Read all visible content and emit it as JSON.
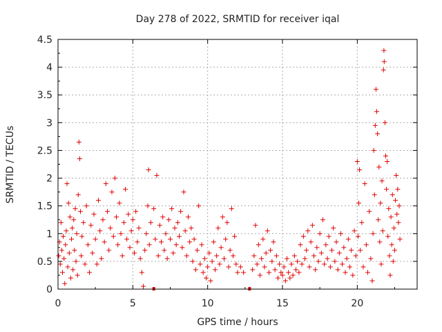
{
  "chart_data": {
    "type": "scatter",
    "title": "Day 278 of 2022, SRMTID for receiver iqal",
    "xlabel": "GPS time / hours",
    "ylabel": "SRMTID / TECUs",
    "xlim": [
      0,
      24
    ],
    "ylim": [
      0,
      4.5
    ],
    "xticks": [
      "0",
      "5",
      "10",
      "15",
      "20"
    ],
    "yticks": [
      "0",
      "0.5",
      "1",
      "1.5",
      "2",
      "2.5",
      "3",
      "3.5",
      "4",
      "4.5"
    ],
    "grid": true,
    "marker": "+",
    "color": "#e00000",
    "series": [
      {
        "name": "SRMTID",
        "points": [
          [
            0.05,
            0.6
          ],
          [
            0.1,
            0.85
          ],
          [
            0.15,
            0.45
          ],
          [
            0.2,
            1.2
          ],
          [
            0.25,
            0.7
          ],
          [
            0.3,
            0.3
          ],
          [
            0.35,
            0.95
          ],
          [
            0.4,
            0.55
          ],
          [
            0.45,
            0.1
          ],
          [
            0.5,
            0.8
          ],
          [
            0.55,
            1.05
          ],
          [
            0.6,
            1.9
          ],
          [
            0.65,
            0.4
          ],
          [
            0.7,
            1.55
          ],
          [
            0.75,
            0.65
          ],
          [
            0.8,
            1.3
          ],
          [
            0.85,
            0.2
          ],
          [
            0.9,
            0.9
          ],
          [
            0.95,
            1.1
          ],
          [
            1.0,
            0.35
          ],
          [
            1.05,
            1.25
          ],
          [
            1.1,
            0.7
          ],
          [
            1.15,
            1.45
          ],
          [
            1.2,
            0.5
          ],
          [
            1.25,
            1.0
          ],
          [
            1.3,
            0.25
          ],
          [
            1.35,
            1.7
          ],
          [
            1.4,
            2.65
          ],
          [
            1.45,
            2.35
          ],
          [
            1.5,
            1.4
          ],
          [
            1.55,
            0.6
          ],
          [
            1.6,
            0.95
          ],
          [
            1.7,
            1.2
          ],
          [
            1.8,
            0.45
          ],
          [
            1.9,
            1.5
          ],
          [
            2.0,
            0.8
          ],
          [
            2.1,
            0.3
          ],
          [
            2.2,
            1.15
          ],
          [
            2.3,
            0.65
          ],
          [
            2.4,
            1.35
          ],
          [
            2.5,
            0.9
          ],
          [
            2.6,
            0.45
          ],
          [
            2.7,
            1.6
          ],
          [
            2.8,
            1.05
          ],
          [
            2.9,
            0.55
          ],
          [
            3.0,
            1.25
          ],
          [
            3.1,
            0.85
          ],
          [
            3.2,
            1.9
          ],
          [
            3.3,
            1.4
          ],
          [
            3.4,
            0.7
          ],
          [
            3.5,
            1.1
          ],
          [
            3.6,
            1.75
          ],
          [
            3.7,
            0.95
          ],
          [
            3.8,
            2.0
          ],
          [
            3.9,
            1.3
          ],
          [
            4.0,
            0.8
          ],
          [
            4.1,
            1.55
          ],
          [
            4.2,
            1.0
          ],
          [
            4.3,
            0.6
          ],
          [
            4.4,
            1.2
          ],
          [
            4.5,
            1.8
          ],
          [
            4.6,
            0.9
          ],
          [
            4.7,
            1.35
          ],
          [
            4.8,
            0.75
          ],
          [
            4.9,
            1.05
          ],
          [
            5.0,
            1.25
          ],
          [
            5.1,
            0.65
          ],
          [
            5.2,
            1.4
          ],
          [
            5.3,
            0.85
          ],
          [
            5.4,
            1.1
          ],
          [
            5.5,
            0.55
          ],
          [
            5.6,
            0.3
          ],
          [
            5.7,
            0.05
          ],
          [
            5.8,
            0.7
          ],
          [
            5.9,
            1.0
          ],
          [
            6.0,
            1.5
          ],
          [
            6.05,
            2.15
          ],
          [
            6.1,
            0.8
          ],
          [
            6.2,
            1.2
          ],
          [
            6.4,
            1.45
          ],
          [
            6.5,
            0.9
          ],
          [
            6.6,
            2.05
          ],
          [
            6.7,
            0.6
          ],
          [
            6.8,
            1.15
          ],
          [
            6.9,
            0.85
          ],
          [
            7.0,
            1.3
          ],
          [
            7.1,
            0.7
          ],
          [
            7.2,
            1.0
          ],
          [
            7.3,
            0.55
          ],
          [
            7.4,
            1.25
          ],
          [
            7.5,
            0.9
          ],
          [
            7.6,
            1.45
          ],
          [
            7.7,
            0.65
          ],
          [
            7.8,
            1.1
          ],
          [
            7.9,
            0.8
          ],
          [
            8.0,
            1.2
          ],
          [
            8.1,
            0.95
          ],
          [
            8.2,
            1.4
          ],
          [
            8.3,
            0.75
          ],
          [
            8.4,
            1.75
          ],
          [
            8.5,
            1.05
          ],
          [
            8.6,
            0.6
          ],
          [
            8.7,
            1.3
          ],
          [
            8.8,
            0.85
          ],
          [
            8.9,
            1.1
          ],
          [
            9.0,
            0.5
          ],
          [
            9.1,
            0.9
          ],
          [
            9.2,
            0.35
          ],
          [
            9.3,
            0.7
          ],
          [
            9.4,
            1.5
          ],
          [
            9.5,
            0.45
          ],
          [
            9.6,
            0.8
          ],
          [
            9.7,
            0.3
          ],
          [
            9.8,
            0.55
          ],
          [
            9.9,
            0.2
          ],
          [
            10.0,
            0.4
          ],
          [
            10.1,
            0.65
          ],
          [
            10.2,
            0.15
          ],
          [
            10.3,
            0.5
          ],
          [
            10.4,
            0.85
          ],
          [
            10.5,
            0.35
          ],
          [
            10.6,
            0.6
          ],
          [
            10.7,
            1.1
          ],
          [
            10.8,
            0.45
          ],
          [
            10.9,
            0.75
          ],
          [
            11.0,
            1.3
          ],
          [
            11.1,
            0.55
          ],
          [
            11.2,
            0.9
          ],
          [
            11.3,
            1.2
          ],
          [
            11.4,
            0.4
          ],
          [
            11.5,
            0.7
          ],
          [
            11.6,
            1.45
          ],
          [
            11.7,
            0.6
          ],
          [
            11.8,
            0.95
          ],
          [
            11.9,
            0.45
          ],
          [
            12.0,
            0.3
          ],
          [
            12.2,
            0.4
          ],
          [
            12.4,
            0.3
          ],
          [
            13.0,
            0.35
          ],
          [
            13.1,
            0.6
          ],
          [
            13.2,
            1.15
          ],
          [
            13.3,
            0.45
          ],
          [
            13.4,
            0.8
          ],
          [
            13.5,
            0.25
          ],
          [
            13.6,
            0.55
          ],
          [
            13.7,
            0.9
          ],
          [
            13.8,
            0.4
          ],
          [
            13.9,
            0.65
          ],
          [
            14.0,
            1.05
          ],
          [
            14.1,
            0.3
          ],
          [
            14.2,
            0.7
          ],
          [
            14.3,
            0.5
          ],
          [
            14.4,
            0.85
          ],
          [
            14.5,
            0.35
          ],
          [
            14.6,
            0.6
          ],
          [
            14.7,
            0.2
          ],
          [
            14.8,
            0.45
          ],
          [
            14.9,
            0.3
          ],
          [
            15.0,
            0.25
          ],
          [
            15.1,
            0.4
          ],
          [
            15.2,
            0.15
          ],
          [
            15.3,
            0.55
          ],
          [
            15.4,
            0.3
          ],
          [
            15.5,
            0.2
          ],
          [
            15.6,
            0.45
          ],
          [
            15.7,
            0.25
          ],
          [
            15.8,
            0.6
          ],
          [
            15.9,
            0.35
          ],
          [
            16.0,
            0.5
          ],
          [
            16.1,
            0.3
          ],
          [
            16.2,
            0.8
          ],
          [
            16.3,
            0.45
          ],
          [
            16.4,
            0.95
          ],
          [
            16.5,
            0.55
          ],
          [
            16.6,
            0.7
          ],
          [
            16.7,
            1.05
          ],
          [
            16.8,
            0.4
          ],
          [
            16.9,
            0.85
          ],
          [
            17.0,
            1.15
          ],
          [
            17.1,
            0.6
          ],
          [
            17.2,
            0.35
          ],
          [
            17.3,
            0.75
          ],
          [
            17.4,
            0.5
          ],
          [
            17.5,
            1.0
          ],
          [
            17.6,
            0.65
          ],
          [
            17.7,
            1.25
          ],
          [
            17.8,
            0.45
          ],
          [
            17.9,
            0.8
          ],
          [
            18.0,
            0.55
          ],
          [
            18.1,
            0.95
          ],
          [
            18.2,
            0.4
          ],
          [
            18.3,
            0.7
          ],
          [
            18.4,
            1.1
          ],
          [
            18.5,
            0.5
          ],
          [
            18.6,
            0.85
          ],
          [
            18.7,
            0.35
          ],
          [
            18.8,
            0.65
          ],
          [
            18.9,
            1.0
          ],
          [
            19.0,
            0.45
          ],
          [
            19.1,
            0.75
          ],
          [
            19.2,
            0.3
          ],
          [
            19.3,
            0.55
          ],
          [
            19.4,
            0.9
          ],
          [
            19.5,
            0.4
          ],
          [
            19.6,
            0.7
          ],
          [
            19.7,
            0.25
          ],
          [
            19.8,
            1.05
          ],
          [
            19.9,
            0.6
          ],
          [
            20.0,
            2.3
          ],
          [
            20.05,
            0.95
          ],
          [
            20.1,
            1.55
          ],
          [
            20.15,
            2.15
          ],
          [
            20.2,
            0.7
          ],
          [
            20.3,
            1.2
          ],
          [
            20.4,
            0.4
          ],
          [
            20.5,
            1.9
          ],
          [
            20.6,
            0.8
          ],
          [
            20.7,
            0.3
          ],
          [
            20.8,
            1.4
          ],
          [
            20.9,
            0.55
          ],
          [
            21.0,
            0.15
          ],
          [
            21.05,
            1.0
          ],
          [
            21.1,
            2.5
          ],
          [
            21.15,
            1.7
          ],
          [
            21.2,
            2.95
          ],
          [
            21.25,
            3.6
          ],
          [
            21.3,
            3.2
          ],
          [
            21.35,
            2.8
          ],
          [
            21.4,
            1.25
          ],
          [
            21.45,
            2.2
          ],
          [
            21.5,
            0.85
          ],
          [
            21.55,
            1.55
          ],
          [
            21.6,
            0.45
          ],
          [
            21.65,
            1.95
          ],
          [
            21.7,
            1.05
          ],
          [
            21.75,
            3.95
          ],
          [
            21.78,
            4.3
          ],
          [
            21.8,
            4.1
          ],
          [
            21.85,
            3.0
          ],
          [
            21.9,
            2.4
          ],
          [
            21.95,
            1.8
          ],
          [
            22.0,
            2.3
          ],
          [
            22.05,
            0.95
          ],
          [
            22.1,
            1.45
          ],
          [
            22.15,
            0.6
          ],
          [
            22.2,
            0.25
          ],
          [
            22.25,
            1.3
          ],
          [
            22.3,
            0.8
          ],
          [
            22.35,
            1.7
          ],
          [
            22.4,
            0.5
          ],
          [
            22.45,
            1.1
          ],
          [
            22.5,
            0.7
          ],
          [
            22.55,
            1.6
          ],
          [
            22.6,
            2.05
          ],
          [
            22.65,
            1.35
          ],
          [
            22.7,
            1.8
          ],
          [
            22.75,
            1.2
          ],
          [
            22.8,
            1.5
          ],
          [
            22.85,
            0.9
          ]
        ]
      }
    ],
    "gap_markers": [
      6.4,
      12.8
    ]
  }
}
